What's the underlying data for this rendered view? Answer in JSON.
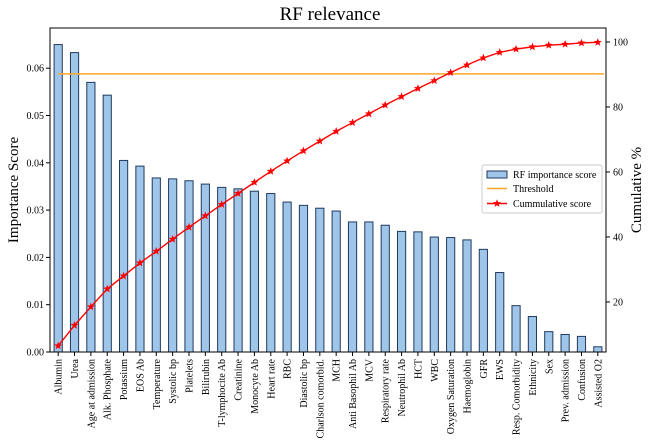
{
  "chart_data": {
    "type": "bar",
    "title": "RF relevance",
    "ylabel": "Importance Score",
    "y2label": "Cumulative %",
    "ylim": [
      0,
      0.0685
    ],
    "y2lim": [
      4.6,
      104.3
    ],
    "yticks": [
      0.0,
      0.01,
      0.02,
      0.03,
      0.04,
      0.05,
      0.06
    ],
    "yticklabels": [
      "0.00",
      "0.01",
      "0.02",
      "0.03",
      "0.04",
      "0.05",
      "0.06"
    ],
    "y2ticks": [
      20,
      40,
      60,
      80,
      100
    ],
    "y2ticklabels": [
      "20",
      "40",
      "60",
      "80",
      "100"
    ],
    "grid": false,
    "legend_position": "right",
    "categories": [
      "Albumin",
      "Urea",
      "Age at admission",
      "Alk. Phosphate",
      "Potassium",
      "EOS Ab",
      "Temperature",
      "Systolic bp",
      "Platelets",
      "Bilirubin",
      "T-lymphocite Ab",
      "Creatinine",
      "Monocyte Ab",
      "Heart rate",
      "RBC",
      "Diastolic bp",
      "Charlson comorbid.",
      "MCH",
      "Anti Basophil Ab",
      "MCV",
      "Respiratory rate",
      "Neutrophil Ab",
      "HCT",
      "WBC",
      "Oxygen Saturation",
      "Haemoglobin",
      "GFR",
      "EWS",
      "Resp. Comorbidity",
      "Ethnicity",
      "Sex",
      "Prev. admission",
      "Confusion",
      "Assisted O2"
    ],
    "series": [
      {
        "name": "RF importance score",
        "kind": "bar",
        "axis": "left",
        "color": "#9fc5e8",
        "edgecolor": "#1f3a5f",
        "values": [
          0.065,
          0.0633,
          0.057,
          0.0543,
          0.0405,
          0.0393,
          0.0368,
          0.0366,
          0.0362,
          0.0355,
          0.0348,
          0.0345,
          0.034,
          0.0335,
          0.0317,
          0.031,
          0.0304,
          0.0298,
          0.0275,
          0.0275,
          0.0268,
          0.0255,
          0.0254,
          0.0243,
          0.0242,
          0.0237,
          0.0217,
          0.0168,
          0.0098,
          0.0075,
          0.0043,
          0.0037,
          0.0033,
          0.0011
        ]
      },
      {
        "name": "Threshold",
        "kind": "hline",
        "axis": "left",
        "color": "#ffa726",
        "value": 0.0588
      },
      {
        "name": "Cummulative score",
        "kind": "line",
        "axis": "right",
        "color": "#ff0000",
        "marker": "star",
        "values": [
          6.5,
          12.8,
          18.5,
          24.0,
          28.0,
          32.0,
          35.6,
          39.3,
          43.0,
          46.5,
          50.0,
          53.4,
          56.8,
          60.2,
          63.4,
          66.5,
          69.5,
          72.5,
          75.2,
          77.9,
          80.6,
          83.2,
          85.7,
          88.1,
          90.6,
          92.9,
          95.1,
          96.8,
          97.8,
          98.5,
          99.0,
          99.3,
          99.7,
          99.9
        ]
      }
    ]
  }
}
